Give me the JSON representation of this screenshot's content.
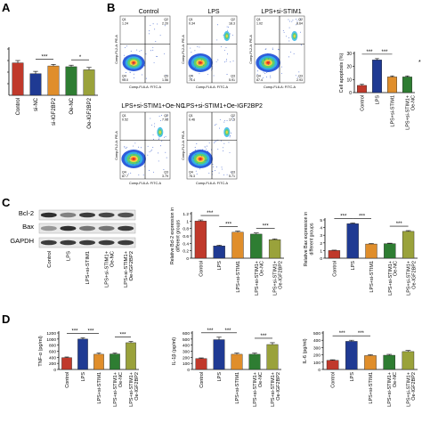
{
  "panels": {
    "A": "A",
    "B": "B",
    "C": "C",
    "D": "D"
  },
  "panel_a": {
    "chart_data": {
      "type": "bar",
      "categories": [
        "Control",
        "si-NC",
        "si-IGF2BP2",
        "Oe-NC",
        "Oe-IGF2BP2"
      ],
      "values": [
        42,
        28,
        38,
        37,
        33
      ],
      "errors": [
        3,
        3,
        2,
        2,
        3
      ],
      "colors": [
        "#c0392b",
        "#1f3a93",
        "#e08e2b",
        "#2e7d32",
        "#9aa23b"
      ],
      "ylim": [
        0,
        60
      ],
      "significance": [
        {
          "from": 1,
          "to": 2,
          "label": "***"
        },
        {
          "from": 3,
          "to": 4,
          "label": "*"
        }
      ]
    }
  },
  "panel_b": {
    "flow_plots": [
      {
        "title": "Control",
        "q1": "Q1",
        "q2": "Q2",
        "q3": "Q3",
        "q4": "Q4",
        "q1v": "1.24",
        "q2v": "2.20",
        "q3v": "1.56",
        "q4v": "95.0"
      },
      {
        "title": "LPS",
        "q1": "Q1",
        "q2": "Q2",
        "q3": "Q3",
        "q4": "Q4",
        "q1v": "0.34",
        "q2v": "18.3",
        "q3v": "5.91",
        "q4v": "75.4"
      },
      {
        "title": "LPS+si-STIM1",
        "q1": "Q1",
        "q2": "Q2",
        "q3": "Q3",
        "q4": "Q4",
        "q1v": "1.02",
        "q2v": "8.64",
        "q3v": "2.93",
        "q4v": "87.4"
      },
      {
        "title": "LPS+si-STIM1+Oe-NC",
        "q1": "Q1",
        "q2": "Q2",
        "q3": "Q3",
        "q4": "Q4",
        "q1v": "0.52",
        "q2v": "7.98",
        "q3v": "3.79",
        "q4v": "87.7"
      },
      {
        "title": "LPS+si-STIM1+Oe-IGF2BP2",
        "q1": "Q1",
        "q2": "Q2",
        "q3": "Q3",
        "q4": "Q4",
        "q1v": "0.46",
        "q2v": "17.5",
        "q3v": "5.71",
        "q4v": "76.3"
      }
    ],
    "x_axis": "Comp-FL6-A: FITC-A",
    "y_axis": "Comp-FL2-A: PE-A",
    "chart_data": {
      "type": "bar",
      "categories": [
        "Control",
        "LPS",
        "LPS+si-STIM1",
        "LPS+si-STIM1+Oe-NC"
      ],
      "values": [
        5.5,
        25,
        12,
        12
      ],
      "errors": [
        0.8,
        1.0,
        0.8,
        0.8
      ],
      "colors": [
        "#c0392b",
        "#1f3a93",
        "#e08e2b",
        "#2e7d32"
      ],
      "ylabel": "Cell apoptosis (%)",
      "yticks": [
        0,
        10,
        20,
        30
      ],
      "ylim": [
        0,
        30
      ],
      "significance": [
        {
          "from": 0,
          "to": 1,
          "label": "***"
        },
        {
          "from": 1,
          "to": 2,
          "label": "***"
        }
      ],
      "edge_mark": "*"
    }
  },
  "panel_c": {
    "blot_labels": [
      "Bcl-2",
      "Bax",
      "GAPDH"
    ],
    "lane_labels": [
      "Control",
      "LPS",
      "LPS+si-STIM1",
      "LPS+si-STIM1+Oe-NC",
      "LPS+si-STIM1+Oe-IGF2BP2"
    ],
    "charts": [
      {
        "type": "bar",
        "categories": [
          "Control",
          "LPS",
          "LPS+si-STIM1",
          "LPS+si-STIM1+Oe-NC",
          "LPS+si-STIM1+Oe-IGF2BP2"
        ],
        "values": [
          1.0,
          0.33,
          0.7,
          0.65,
          0.5
        ],
        "errors": [
          0.03,
          0.02,
          0.03,
          0.03,
          0.02
        ],
        "colors": [
          "#c0392b",
          "#1f3a93",
          "#e08e2b",
          "#2e7d32",
          "#9aa23b"
        ],
        "ylabel": "Relative Bcl-2 expression in different groups",
        "yticks": [
          0.0,
          0.2,
          0.4,
          0.6,
          0.8,
          1.0,
          1.2
        ],
        "ylim": [
          0,
          1.2
        ],
        "significance": [
          {
            "from": 0,
            "to": 1,
            "label": "***"
          },
          {
            "from": 1,
            "to": 2,
            "label": "***"
          },
          {
            "from": 3,
            "to": 4,
            "label": "***"
          }
        ]
      },
      {
        "type": "bar",
        "categories": [
          "Control",
          "LPS",
          "LPS+si-STIM1",
          "LPS+si-STIM1+Oe-NC",
          "LPS+si-STIM1+Oe-IGF2BP2"
        ],
        "values": [
          1.0,
          4.5,
          1.85,
          1.9,
          3.5
        ],
        "errors": [
          0.05,
          0.1,
          0.06,
          0.06,
          0.1
        ],
        "colors": [
          "#c0392b",
          "#1f3a93",
          "#e08e2b",
          "#2e7d32",
          "#9aa23b"
        ],
        "ylabel": "Relative Bax expression in different groups",
        "yticks": [
          0,
          1,
          2,
          3,
          4,
          5
        ],
        "ylim": [
          0,
          5
        ],
        "significance": [
          {
            "from": 0,
            "to": 1,
            "label": "***"
          },
          {
            "from": 1,
            "to": 2,
            "label": "***"
          },
          {
            "from": 3,
            "to": 4,
            "label": "***"
          }
        ]
      }
    ]
  },
  "panel_d": {
    "charts": [
      {
        "type": "bar",
        "categories": [
          "Control",
          "LPS",
          "LPS+si-STIM1",
          "LPS+si-STIM1+Oe-NC",
          "LPS+si-STIM1+Oe-IGF2BP2"
        ],
        "values": [
          390,
          1000,
          500,
          510,
          880
        ],
        "errors": [
          20,
          40,
          40,
          30,
          40
        ],
        "colors": [
          "#c0392b",
          "#1f3a93",
          "#e08e2b",
          "#2e7d32",
          "#9aa23b"
        ],
        "ylabel": "TNF-α (pg/ml)",
        "yticks": [
          0,
          200,
          400,
          600,
          800,
          1000,
          1200
        ],
        "ylim": [
          0,
          1200
        ],
        "significance": [
          {
            "from": 0,
            "to": 1,
            "label": "***"
          },
          {
            "from": 1,
            "to": 2,
            "label": "***"
          },
          {
            "from": 3,
            "to": 4,
            "label": "***"
          }
        ]
      },
      {
        "type": "bar",
        "categories": [
          "Control",
          "LPS",
          "LPS+si-STIM1",
          "LPS+si-STIM1+Oe-NC",
          "LPS+si-STIM1+Oe-IGF2BP2"
        ],
        "values": [
          180,
          490,
          250,
          250,
          410
        ],
        "errors": [
          10,
          40,
          20,
          20,
          30
        ],
        "colors": [
          "#c0392b",
          "#1f3a93",
          "#e08e2b",
          "#2e7d32",
          "#9aa23b"
        ],
        "ylabel": "IL-1β (pg/ml)",
        "yticks": [
          0,
          100,
          200,
          300,
          400,
          500,
          600
        ],
        "ylim": [
          0,
          600
        ],
        "significance": [
          {
            "from": 0,
            "to": 1,
            "label": "***"
          },
          {
            "from": 1,
            "to": 2,
            "label": "***"
          },
          {
            "from": 3,
            "to": 4,
            "label": "***"
          }
        ]
      },
      {
        "type": "bar",
        "categories": [
          "Control",
          "LPS",
          "LPS+si-STIM1",
          "LPS+si-STIM1+Oe-NC",
          "LPS+si-STIM1+Oe-IGF2BP2"
        ],
        "values": [
          125,
          385,
          190,
          195,
          245
        ],
        "errors": [
          8,
          15,
          12,
          12,
          15
        ],
        "colors": [
          "#c0392b",
          "#1f3a93",
          "#e08e2b",
          "#2e7d32",
          "#9aa23b"
        ],
        "ylabel": "IL-6 (pg/ml)",
        "yticks": [
          0,
          100,
          200,
          300,
          400,
          500
        ],
        "ylim": [
          0,
          500
        ],
        "significance": [
          {
            "from": 0,
            "to": 1,
            "label": "***"
          },
          {
            "from": 1,
            "to": 2,
            "label": "***"
          }
        ]
      }
    ]
  }
}
